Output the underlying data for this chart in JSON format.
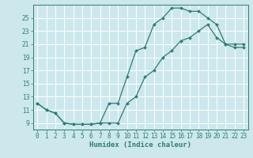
{
  "xlabel": "Humidex (Indice chaleur)",
  "bg_color": "#cce8ec",
  "grid_color": "#ffffff",
  "line_color": "#2e7d72",
  "line1_x": [
    0,
    1,
    2,
    3,
    4,
    5,
    6,
    7,
    8,
    9,
    10,
    11,
    12,
    13,
    14,
    15,
    16,
    17,
    18,
    19,
    20,
    21,
    22,
    23
  ],
  "line1_y": [
    12,
    11,
    10.5,
    9,
    8.8,
    8.8,
    8.8,
    9,
    12,
    12,
    16,
    20,
    20.5,
    24,
    25,
    26.5,
    26.5,
    26,
    26,
    25,
    24,
    21,
    20.5,
    20.5
  ],
  "line2_x": [
    0,
    1,
    2,
    3,
    4,
    5,
    6,
    7,
    8,
    9,
    10,
    11,
    12,
    13,
    14,
    15,
    16,
    17,
    18,
    19,
    20,
    21,
    22,
    23
  ],
  "line2_y": [
    12,
    11,
    10.5,
    9,
    8.8,
    8.8,
    8.8,
    9,
    9,
    9,
    12,
    13,
    16,
    17,
    19,
    20,
    21.5,
    22,
    23,
    24,
    22,
    21,
    21,
    21
  ],
  "xlim": [
    -0.5,
    23.5
  ],
  "ylim": [
    8.0,
    27.0
  ],
  "xticks": [
    0,
    1,
    2,
    3,
    4,
    5,
    6,
    7,
    8,
    9,
    10,
    11,
    12,
    13,
    14,
    15,
    16,
    17,
    18,
    19,
    20,
    21,
    22,
    23
  ],
  "yticks": [
    9,
    11,
    13,
    15,
    17,
    19,
    21,
    23,
    25
  ],
  "tick_fontsize": 5.5,
  "label_fontsize": 6.5
}
